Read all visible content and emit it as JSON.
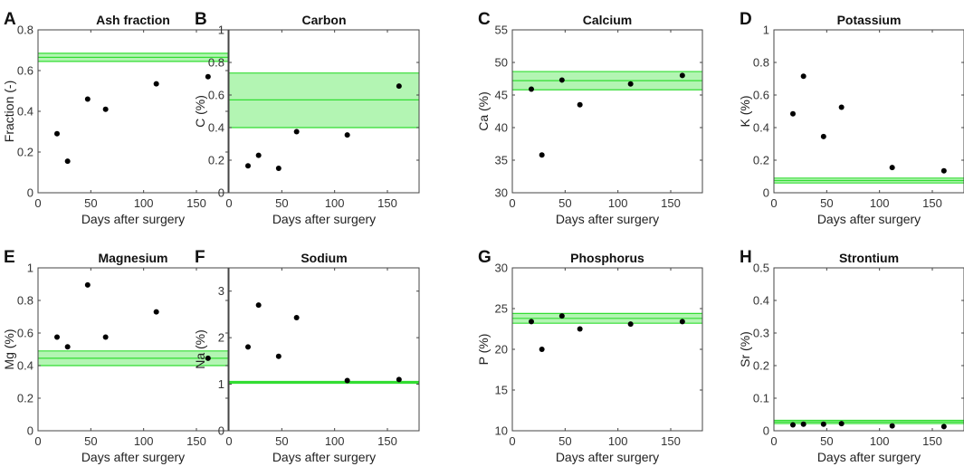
{
  "chart_data": [
    {
      "type": "scatter",
      "letter": "A",
      "title": "Ash fraction",
      "xlabel": "Days after surgery",
      "ylabel": "Fraction (-)",
      "xlim": [
        0,
        180
      ],
      "ylim": [
        0,
        0.8
      ],
      "xticks": [
        0,
        50,
        100,
        150
      ],
      "yticks": [
        0,
        0.2,
        0.4,
        0.6,
        0.8
      ],
      "yticklabels": [
        "0",
        "0.2",
        "0.4",
        "0.6",
        "0.8"
      ],
      "x": [
        18,
        28,
        47,
        64,
        112,
        161
      ],
      "y": [
        0.29,
        0.155,
        0.46,
        0.41,
        0.535,
        0.57
      ],
      "reference": {
        "mean": 0.665,
        "low": 0.645,
        "high": 0.685
      }
    },
    {
      "type": "scatter",
      "letter": "B",
      "title": "Carbon",
      "xlabel": "Days after surgery",
      "ylabel": "C (%)",
      "xlim": [
        0,
        180
      ],
      "ylim": [
        0,
        1
      ],
      "xticks": [
        0,
        50,
        100,
        150
      ],
      "yticks": [
        0,
        0.2,
        0.4,
        0.6,
        0.8,
        1
      ],
      "yticklabels": [
        "0",
        "0.2",
        "0.4",
        "0.6",
        "0.8",
        "1"
      ],
      "x": [
        18,
        28,
        47,
        64,
        112,
        161
      ],
      "y": [
        0.165,
        0.23,
        0.15,
        0.375,
        0.355,
        0.655
      ],
      "reference": {
        "mean": 0.57,
        "low": 0.4,
        "high": 0.735
      }
    },
    {
      "type": "scatter",
      "letter": "C",
      "title": "Calcium",
      "xlabel": "Days after surgery",
      "ylabel": "Ca (%)",
      "xlim": [
        0,
        180
      ],
      "ylim": [
        30,
        55
      ],
      "xticks": [
        0,
        50,
        100,
        150
      ],
      "yticks": [
        30,
        35,
        40,
        45,
        50,
        55
      ],
      "yticklabels": [
        "30",
        "35",
        "40",
        "45",
        "50",
        "55"
      ],
      "x": [
        18,
        28,
        47,
        64,
        112,
        161
      ],
      "y": [
        45.9,
        35.8,
        47.3,
        43.5,
        46.7,
        48.0
      ],
      "reference": {
        "mean": 47.2,
        "low": 45.8,
        "high": 48.6
      }
    },
    {
      "type": "scatter",
      "letter": "D",
      "title": "Potassium",
      "xlabel": "Days after surgery",
      "ylabel": "K (%)",
      "xlim": [
        0,
        180
      ],
      "ylim": [
        0,
        1
      ],
      "xticks": [
        0,
        50,
        100,
        150
      ],
      "yticks": [
        0,
        0.2,
        0.4,
        0.6,
        0.8,
        1
      ],
      "yticklabels": [
        "0",
        "0.2",
        "0.4",
        "0.6",
        "0.8",
        "1"
      ],
      "x": [
        18,
        28,
        47,
        64,
        112,
        161
      ],
      "y": [
        0.485,
        0.715,
        0.345,
        0.525,
        0.155,
        0.135
      ],
      "reference": {
        "mean": 0.075,
        "low": 0.06,
        "high": 0.09
      }
    },
    {
      "type": "scatter",
      "letter": "E",
      "title": "Magnesium",
      "xlabel": "Days after surgery",
      "ylabel": "Mg (%)",
      "xlim": [
        0,
        180
      ],
      "ylim": [
        0,
        1
      ],
      "xticks": [
        0,
        50,
        100,
        150
      ],
      "yticks": [
        0,
        0.2,
        0.4,
        0.6,
        0.8,
        1
      ],
      "yticklabels": [
        "0",
        "0.2",
        "0.4",
        "0.6",
        "0.8",
        "1"
      ],
      "x": [
        18,
        28,
        47,
        64,
        112,
        161
      ],
      "y": [
        0.575,
        0.515,
        0.895,
        0.575,
        0.73,
        0.445
      ],
      "reference": {
        "mean": 0.445,
        "low": 0.4,
        "high": 0.49
      }
    },
    {
      "type": "scatter",
      "letter": "F",
      "title": "Sodium",
      "xlabel": "Days after surgery",
      "ylabel": "Na (%)",
      "xlim": [
        0,
        180
      ],
      "ylim": [
        0,
        3.5
      ],
      "xticks": [
        0,
        50,
        100,
        150
      ],
      "yticks": [
        0,
        1,
        2,
        3
      ],
      "yticklabels": [
        "0",
        "1",
        "2",
        "3"
      ],
      "x": [
        18,
        28,
        47,
        64,
        112,
        161
      ],
      "y": [
        1.8,
        2.7,
        1.6,
        2.43,
        1.08,
        1.1
      ],
      "reference": {
        "mean": 1.04,
        "low": 1.02,
        "high": 1.06
      }
    },
    {
      "type": "scatter",
      "letter": "G",
      "title": "Phosphorus",
      "xlabel": "Days after surgery",
      "ylabel": "P (%)",
      "xlim": [
        0,
        180
      ],
      "ylim": [
        10,
        30
      ],
      "xticks": [
        0,
        50,
        100,
        150
      ],
      "yticks": [
        10,
        15,
        20,
        25,
        30
      ],
      "yticklabels": [
        "10",
        "15",
        "20",
        "25",
        "30"
      ],
      "x": [
        18,
        28,
        47,
        64,
        112,
        161
      ],
      "y": [
        23.4,
        20.0,
        24.1,
        22.5,
        23.1,
        23.4
      ],
      "reference": {
        "mean": 23.8,
        "low": 23.2,
        "high": 24.4
      }
    },
    {
      "type": "scatter",
      "letter": "H",
      "title": "Strontium",
      "xlabel": "Days after surgery",
      "ylabel": "Sr (%)",
      "xlim": [
        0,
        180
      ],
      "ylim": [
        0,
        0.5
      ],
      "xticks": [
        0,
        50,
        100,
        150
      ],
      "yticks": [
        0,
        0.1,
        0.2,
        0.3,
        0.4,
        0.5
      ],
      "yticklabels": [
        "0",
        "0.1",
        "0.2",
        "0.3",
        "0.4",
        "0.5"
      ],
      "x": [
        18,
        28,
        47,
        64,
        112,
        161
      ],
      "y": [
        0.018,
        0.02,
        0.02,
        0.022,
        0.015,
        0.013
      ],
      "reference": {
        "mean": 0.027,
        "low": 0.022,
        "high": 0.032
      }
    }
  ],
  "colors": {
    "band_fill": "#b3f5b3",
    "band_edge": "#33dd33",
    "marker": "#000000",
    "axis": "#444444"
  }
}
